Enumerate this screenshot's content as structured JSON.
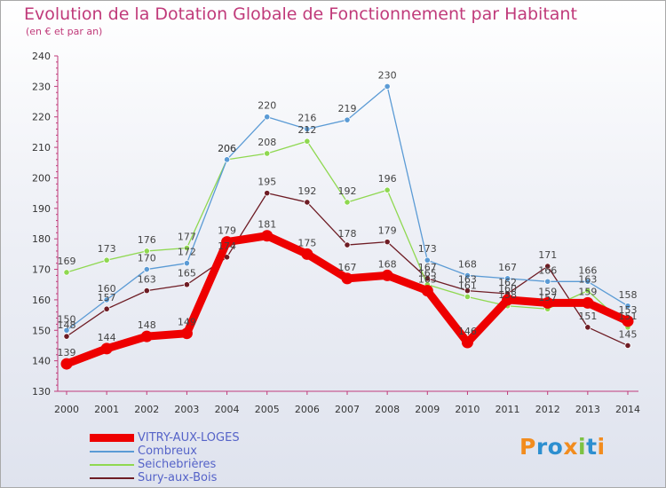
{
  "title": "Evolution de la Dotation Globale de Fonctionnement par Habitant",
  "subtitle": "(en € et par an)",
  "chart_data": {
    "type": "line",
    "title": "Evolution de la Dotation Globale de Fonctionnement par Habitant",
    "subtitle": "(en € et par an)",
    "xlabel": "",
    "ylabel": "",
    "ylim": [
      130,
      240
    ],
    "yticks": [
      130,
      140,
      150,
      160,
      170,
      180,
      190,
      200,
      210,
      220,
      230,
      240
    ],
    "grid": false,
    "legend_position": "bottom-left",
    "x": [
      "2000",
      "2001",
      "2002",
      "2003",
      "2004",
      "2005",
      "2006",
      "2007",
      "2008",
      "2009",
      "2010",
      "2011",
      "2012",
      "2013",
      "2014"
    ],
    "series": [
      {
        "name": "VITRY-AUX-LOGES",
        "color": "#ee0000",
        "values": [
          139,
          144,
          148,
          149,
          179,
          181,
          175,
          167,
          168,
          163,
          146,
          160,
          159,
          159,
          153
        ]
      },
      {
        "name": "Combreux",
        "color": "#5b9bd5",
        "values": [
          150,
          160,
          170,
          172,
          206,
          220,
          216,
          219,
          230,
          173,
          168,
          167,
          166,
          166,
          158
        ]
      },
      {
        "name": "Seichebrières",
        "color": "#8fd850",
        "values": [
          169,
          173,
          176,
          177,
          206,
          208,
          212,
          192,
          196,
          165,
          161,
          158,
          157,
          163,
          151
        ]
      },
      {
        "name": "Sury-aux-Bois",
        "color": "#6e1c24",
        "values": [
          148,
          157,
          163,
          165,
          174,
          195,
          192,
          178,
          179,
          167,
          163,
          162,
          171,
          151,
          145
        ]
      }
    ],
    "point_labels": [
      [
        "139",
        "144",
        "148",
        "149",
        "179",
        "181",
        "175",
        "167",
        "168",
        "163",
        "146",
        "160",
        "159",
        "159",
        "153"
      ],
      [
        "150",
        "160",
        "170",
        "172",
        "206",
        "220",
        "216",
        "219",
        "230",
        "173",
        "168",
        "167",
        "166",
        "166",
        "158"
      ],
      [
        "169",
        "173",
        "176",
        "177",
        "206",
        "208",
        "212",
        "192",
        "196",
        "165",
        "161",
        "158",
        "157",
        "163",
        "151"
      ],
      [
        "148",
        "157",
        "163",
        "165",
        "174",
        "195",
        "192",
        "178",
        "179",
        "167",
        "163",
        "162",
        "171",
        "151",
        "145"
      ]
    ]
  },
  "legend": [
    {
      "label": "VITRY-AUX-LOGES",
      "color": "#ee0000"
    },
    {
      "label": "Combreux",
      "color": "#5b9bd5"
    },
    {
      "label": "Seichebrières",
      "color": "#8fd850"
    },
    {
      "label": "Sury-aux-Bois",
      "color": "#6e1c24"
    }
  ],
  "logo": {
    "letters": [
      "P",
      "r",
      "o",
      "x",
      "i",
      "t",
      "i"
    ],
    "colors": [
      "#f28c1e",
      "#2d8fd0",
      "#2d8fd0",
      "#f28c1e",
      "#7cc242",
      "#2d8fd0",
      "#f28c1e"
    ]
  }
}
